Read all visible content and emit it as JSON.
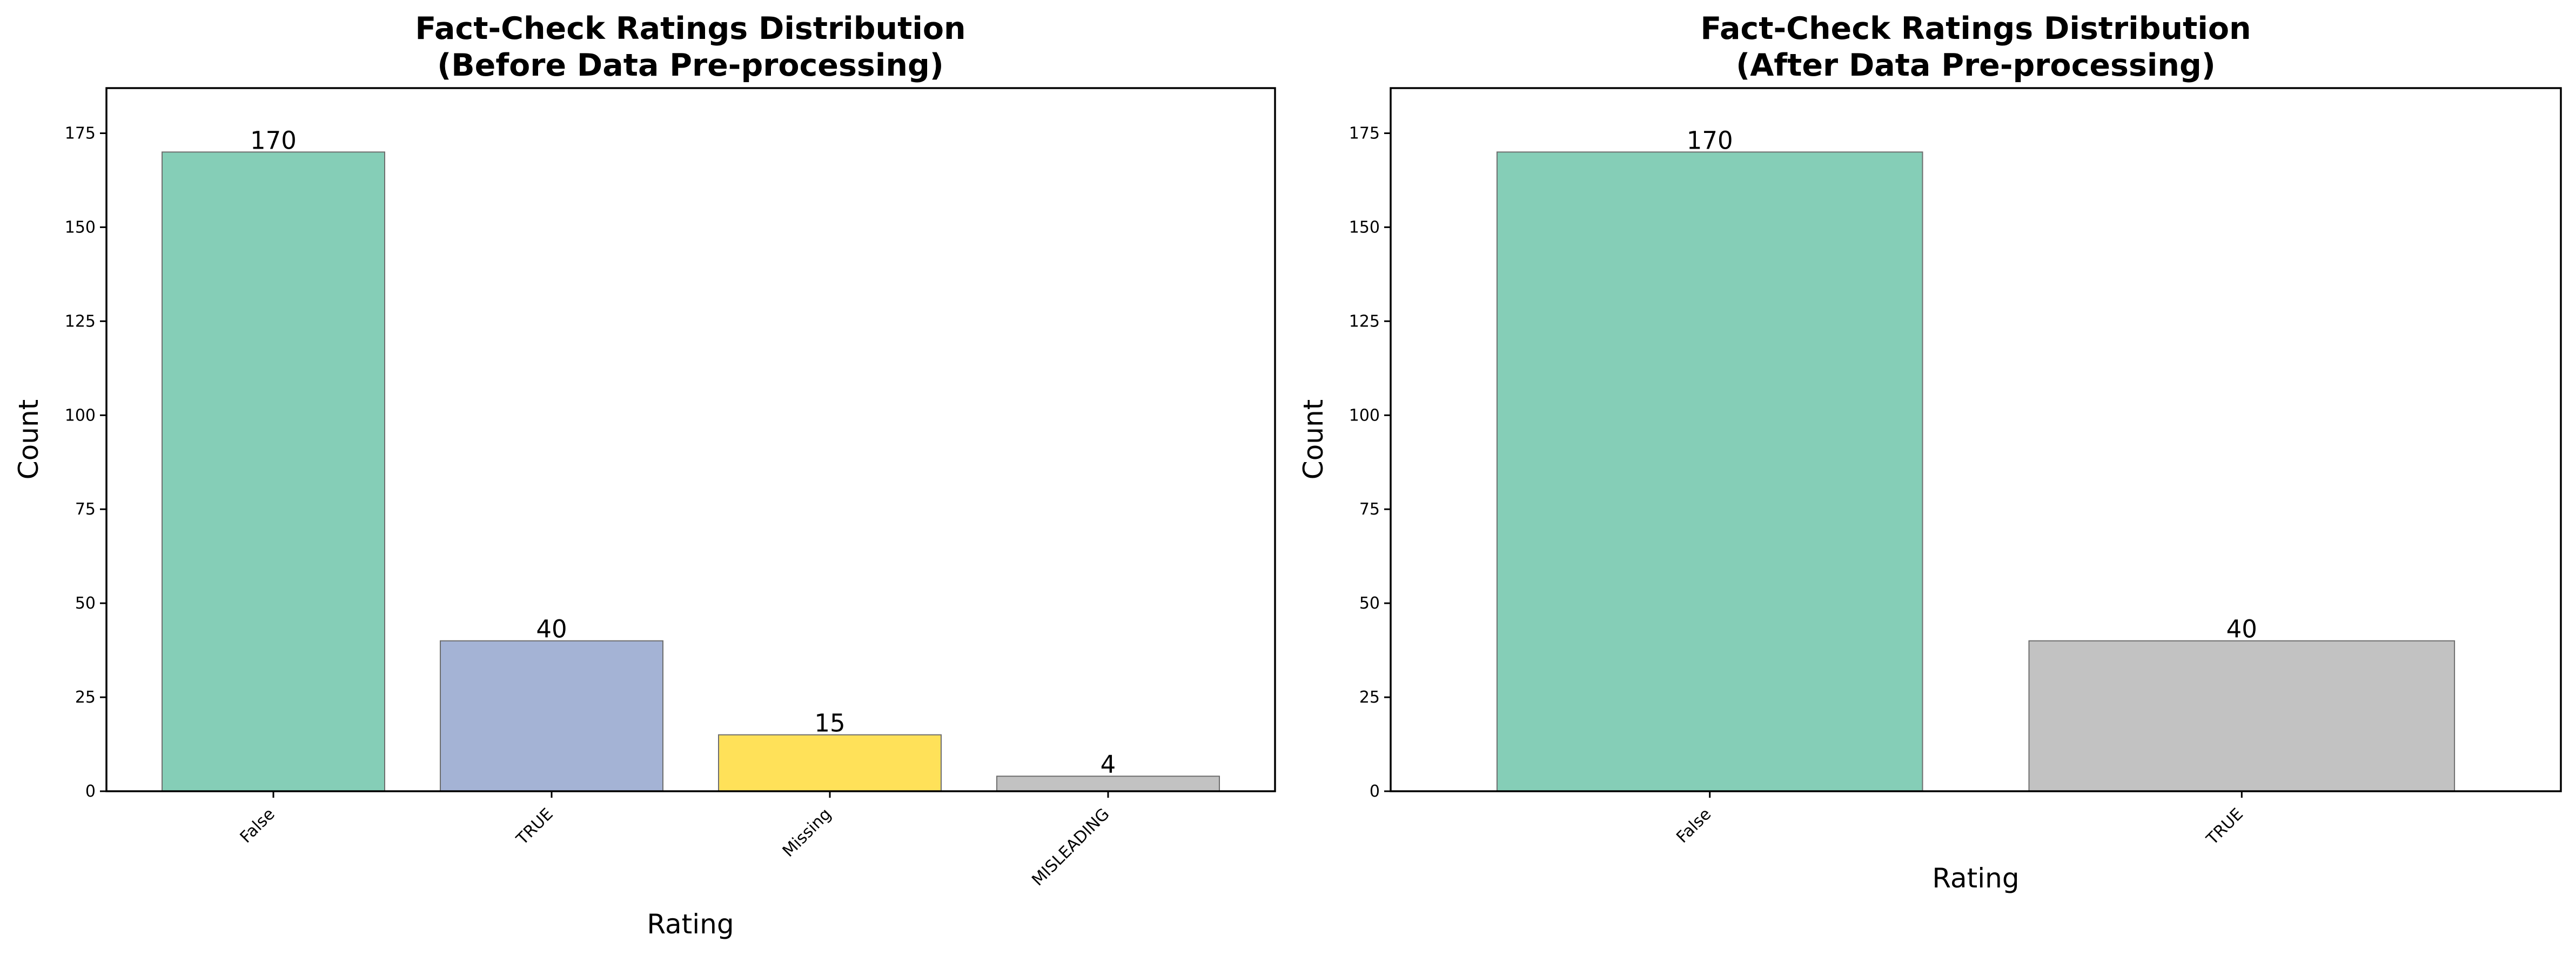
{
  "figure": {
    "background": "#ffffff"
  },
  "chart_data": [
    {
      "type": "bar",
      "title_line1": "Fact-Check Ratings Distribution",
      "title_line2": "(Before Data Pre-processing)",
      "xlabel": "Rating",
      "ylabel": "Count",
      "categories": [
        "False",
        "TRUE",
        "Missing",
        "MISLEADING"
      ],
      "values": [
        170,
        40,
        15,
        4
      ],
      "value_labels": [
        "170",
        "40",
        "15",
        "4"
      ],
      "colors": [
        "#66c2a5",
        "#8da0cb",
        "#ffd92f",
        "#b3b3b3"
      ],
      "ylim": [
        0,
        187
      ],
      "yticks": [
        0,
        25,
        50,
        75,
        100,
        125,
        150,
        175
      ],
      "ytick_labels": [
        "0",
        "25",
        "50",
        "75",
        "100",
        "125",
        "150",
        "175"
      ],
      "grid": false,
      "legend": "none"
    },
    {
      "type": "bar",
      "title_line1": "Fact-Check Ratings Distribution",
      "title_line2": "(After Data Pre-processing)",
      "xlabel": "Rating",
      "ylabel": "Count",
      "categories": [
        "False",
        "TRUE"
      ],
      "values": [
        170,
        40
      ],
      "value_labels": [
        "170",
        "40"
      ],
      "colors": [
        "#66c2a5",
        "#b3b3b3"
      ],
      "ylim": [
        0,
        187
      ],
      "yticks": [
        0,
        25,
        50,
        75,
        100,
        125,
        150,
        175
      ],
      "ytick_labels": [
        "0",
        "25",
        "50",
        "75",
        "100",
        "125",
        "150",
        "175"
      ],
      "grid": false,
      "legend": "none"
    }
  ]
}
